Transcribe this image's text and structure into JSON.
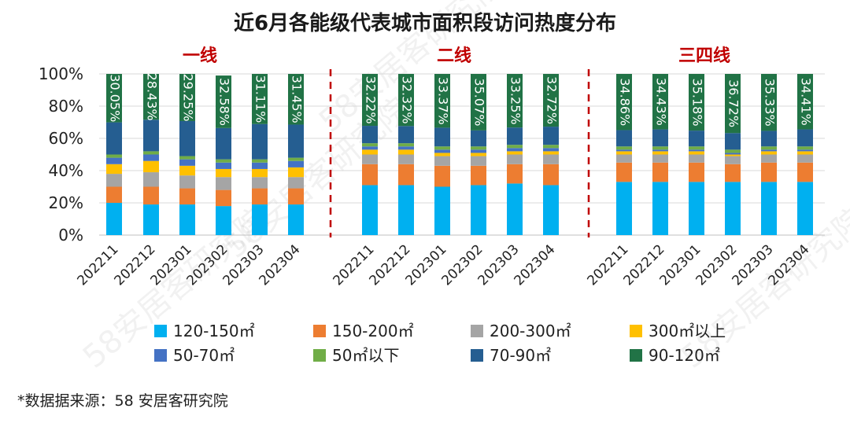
{
  "chart_data": {
    "type": "bar",
    "stacked": true,
    "percent_stacked": true,
    "title": "近6月各能级代表城市面积段访问热度分布",
    "source_note": "*数据据来源：58 安居客研究院",
    "watermark": "58安居客研究院",
    "ylim": [
      0,
      100
    ],
    "yticks": [
      "0%",
      "20%",
      "40%",
      "60%",
      "80%",
      "100%"
    ],
    "legend_position": "bottom",
    "colors": {
      "120-150㎡": "#00b0f0",
      "150-200㎡": "#ed7d31",
      "200-300㎡": "#a5a5a5",
      "300㎡以上": "#ffc000",
      "50-70㎡": "#4472c4",
      "50㎡以下": "#70ad47",
      "70-90㎡": "#255e91",
      "90-120㎡": "#217346",
      "divider": "#c00000"
    },
    "stack_order": [
      "120-150㎡",
      "150-200㎡",
      "200-300㎡",
      "300㎡以上",
      "50-70㎡",
      "50㎡以下",
      "70-90㎡",
      "90-120㎡"
    ],
    "legend": [
      "120-150㎡",
      "150-200㎡",
      "200-300㎡",
      "300㎡以上",
      "50-70㎡",
      "50㎡以下",
      "70-90㎡",
      "90-120㎡"
    ],
    "groups": [
      {
        "name": "一线",
        "categories": [
          "202211",
          "202212",
          "202301",
          "202302",
          "202303",
          "202304"
        ],
        "series": [
          {
            "name": "120-150㎡",
            "values": [
              20,
              19,
              19,
              18,
              19,
              19
            ]
          },
          {
            "name": "150-200㎡",
            "values": [
              10,
              11,
              10,
              10,
              10,
              10
            ]
          },
          {
            "name": "200-300㎡",
            "values": [
              8,
              9,
              8,
              8,
              7,
              7
            ]
          },
          {
            "name": "300㎡以上",
            "values": [
              6,
              7,
              6,
              5,
              5,
              6
            ]
          },
          {
            "name": "50-70㎡",
            "values": [
              4,
              4,
              4,
              4,
              4,
              4
            ]
          },
          {
            "name": "50㎡以下",
            "values": [
              2,
              2,
              2,
              2,
              2,
              2
            ]
          },
          {
            "name": "70-90㎡",
            "values": [
              19.95,
              19.57,
              21.75,
              19.42,
              21.89,
              20.55
            ]
          },
          {
            "name": "90-120㎡",
            "values": [
              30.05,
              28.43,
              29.25,
              32.58,
              31.11,
              31.45
            ]
          }
        ],
        "labels": [
          "30.05%",
          "28.43%",
          "29.25%",
          "32.58%",
          "31.11%",
          "31.45%"
        ]
      },
      {
        "name": "二线",
        "categories": [
          "202211",
          "202212",
          "202301",
          "202302",
          "202303",
          "202304"
        ],
        "series": [
          {
            "name": "120-150㎡",
            "values": [
              31,
              31,
              30,
              31,
              32,
              31
            ]
          },
          {
            "name": "150-200㎡",
            "values": [
              13,
              13,
              13,
              12,
              12,
              13
            ]
          },
          {
            "name": "200-300㎡",
            "values": [
              6,
              6,
              6,
              6,
              6,
              6
            ]
          },
          {
            "name": "300㎡以上",
            "values": [
              3,
              3,
              2,
              2,
              2,
              2
            ]
          },
          {
            "name": "50-70㎡",
            "values": [
              2,
              2,
              2,
              2,
              2,
              2
            ]
          },
          {
            "name": "50㎡以下",
            "values": [
              2,
              2,
              2,
              2,
              2,
              2
            ]
          },
          {
            "name": "70-90㎡",
            "values": [
              10.78,
              10.68,
              11.63,
              9.93,
              10.75,
              11.28
            ]
          },
          {
            "name": "90-120㎡",
            "values": [
              32.22,
              32.32,
              33.37,
              35.07,
              33.25,
              32.72
            ]
          }
        ],
        "labels": [
          "32.22%",
          "32.32%",
          "33.37%",
          "35.07%",
          "33.25%",
          "32.72%"
        ]
      },
      {
        "name": "三四线",
        "categories": [
          "202211",
          "202212",
          "202301",
          "202302",
          "202303",
          "202304"
        ],
        "series": [
          {
            "name": "120-150㎡",
            "values": [
              33,
              33,
              33,
              33,
              33,
              33
            ]
          },
          {
            "name": "150-200㎡",
            "values": [
              12,
              12,
              12,
              11,
              12,
              12
            ]
          },
          {
            "name": "200-300㎡",
            "values": [
              5,
              5,
              5,
              5,
              5,
              5
            ]
          },
          {
            "name": "300㎡以上",
            "values": [
              2,
              2,
              2,
              1,
              2,
              2
            ]
          },
          {
            "name": "50-70㎡",
            "values": [
              1,
              1,
              1,
              1,
              1,
              1
            ]
          },
          {
            "name": "50㎡以下",
            "values": [
              2,
              2,
              2,
              2,
              2,
              2
            ]
          },
          {
            "name": "70-90㎡",
            "values": [
              10.14,
              10.57,
              9.82,
              10.28,
              9.67,
              10.59
            ]
          },
          {
            "name": "90-120㎡",
            "values": [
              34.86,
              34.43,
              35.18,
              36.72,
              35.33,
              34.41
            ]
          }
        ],
        "labels": [
          "34.86%",
          "34.43%",
          "35.18%",
          "36.72%",
          "35.33%",
          "34.41%"
        ]
      }
    ]
  }
}
